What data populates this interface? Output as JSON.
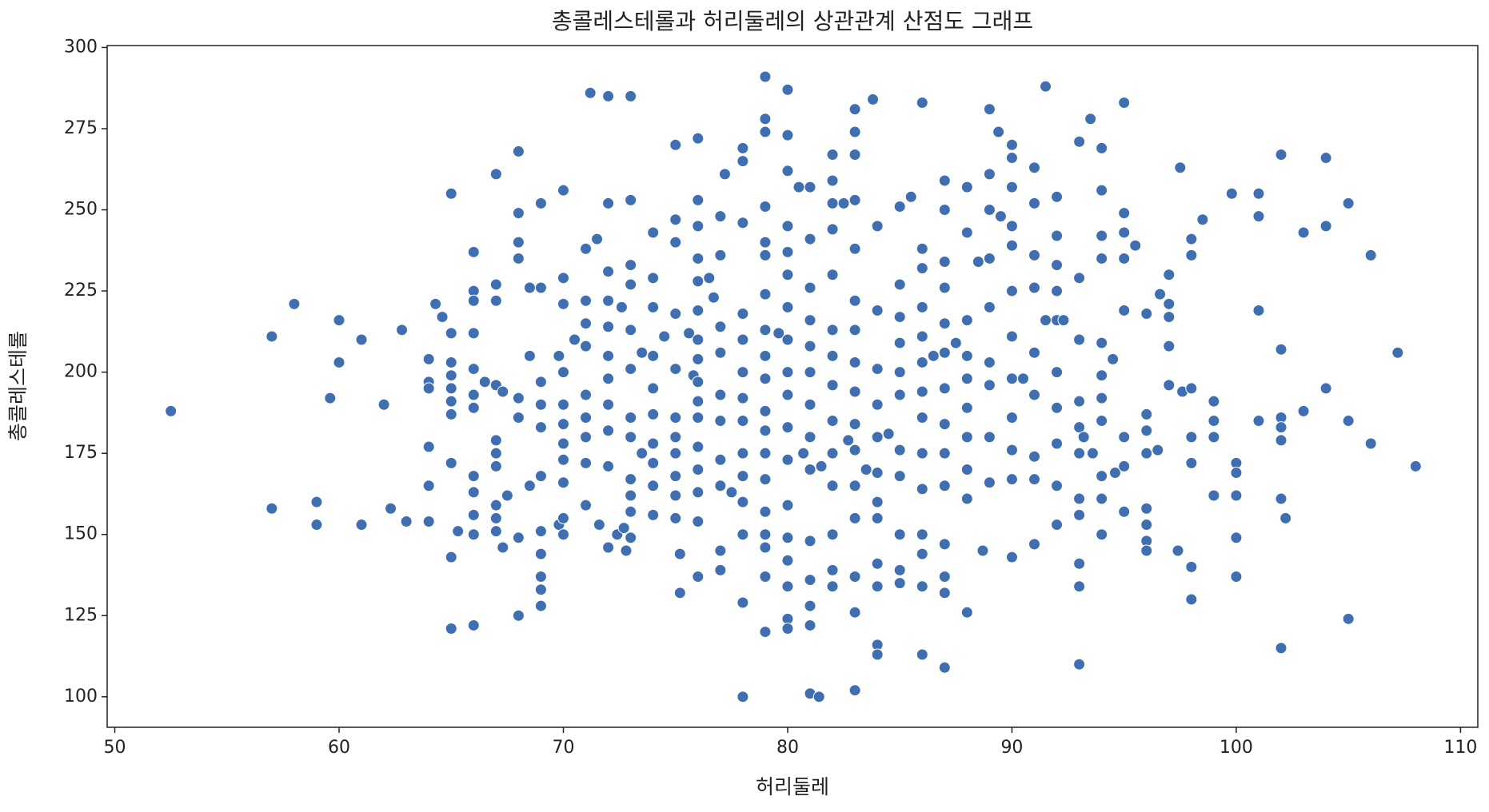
{
  "chart_data": {
    "type": "scatter",
    "title": "총콜레스테롤과 허리둘레의 상관관계 산점도 그래프",
    "x_label": "허리둘레",
    "y_label": "총콜레스테롤",
    "color": "#3f6fb0",
    "xlim": [
      49.66,
      110.77
    ],
    "ylim": [
      90.6,
      300.6
    ],
    "xticks": [
      50,
      60,
      70,
      80,
      90,
      100,
      110
    ],
    "yticks": [
      100,
      125,
      150,
      175,
      200,
      225,
      250,
      275,
      300
    ],
    "x": [
      52.5,
      57,
      57,
      58,
      59,
      59,
      59.6,
      60,
      60,
      61,
      61,
      62,
      62.3,
      62.8,
      63,
      64,
      64,
      64,
      64,
      64,
      64,
      64.3,
      64.6,
      65,
      65,
      65,
      65,
      65,
      65,
      65,
      65,
      65,
      65,
      65.3,
      66,
      66,
      66,
      66,
      66,
      66,
      66,
      66,
      66,
      66,
      66,
      66,
      66.5,
      67,
      67,
      67,
      67,
      67,
      67,
      67,
      67,
      67,
      67,
      67.3,
      67.5,
      67.3,
      68,
      68,
      68,
      68,
      68,
      68,
      68,
      68,
      68.5,
      68.5,
      68.5,
      69,
      69,
      69,
      69,
      69,
      69,
      69,
      69,
      69,
      69,
      69,
      69.8,
      69.8,
      70,
      70,
      70,
      70,
      70,
      70,
      70,
      70,
      70,
      70,
      70,
      70.5,
      71,
      71,
      71,
      71,
      71,
      71,
      71,
      71,
      71,
      71.2,
      71.5,
      71.6,
      72,
      72,
      72,
      72,
      72,
      72,
      72,
      72,
      72,
      72,
      72,
      72.4,
      72.6,
      72.7,
      72.8,
      73,
      73,
      73,
      73,
      73,
      73,
      73,
      73,
      73,
      73,
      73,
      73,
      73.5,
      73.5,
      74,
      74,
      74,
      74,
      74,
      74,
      74,
      74,
      74,
      74,
      74.5,
      75,
      75,
      75,
      75,
      75,
      75,
      75,
      75,
      75,
      75,
      75,
      75.2,
      75.2,
      75.6,
      75.8,
      76,
      76,
      76,
      76,
      76,
      76,
      76,
      76,
      76,
      76,
      76,
      76,
      76,
      76,
      76,
      76,
      76.5,
      76.7,
      77,
      77,
      77,
      77,
      77,
      77,
      77,
      77,
      77,
      77,
      77.2,
      77.5,
      78,
      78,
      78,
      78,
      78,
      78,
      78,
      78,
      78,
      78,
      78,
      78,
      78,
      78,
      79,
      79,
      79,
      79,
      79,
      79,
      79,
      79,
      79,
      79,
      79,
      79,
      79,
      79,
      79,
      79,
      79,
      79,
      79,
      79.6,
      80,
      80,
      80,
      80,
      80,
      80,
      80,
      80,
      80,
      80,
      80,
      80,
      80,
      80,
      80,
      80,
      80,
      80,
      80.5,
      80.7,
      81,
      81,
      81,
      81,
      81,
      81,
      81,
      81,
      81,
      81,
      81,
      81,
      81,
      81,
      81.4,
      81.5,
      82,
      82,
      82,
      82,
      82,
      82,
      82,
      82,
      82,
      82,
      82,
      82,
      82,
      82,
      82.5,
      82.7,
      83,
      83,
      83,
      83,
      83,
      83,
      83,
      83,
      83,
      83,
      83,
      83,
      83,
      83,
      83,
      83,
      83.5,
      83.8,
      84,
      84,
      84,
      84,
      84,
      84,
      84,
      84,
      84,
      84,
      84,
      84,
      84.5,
      85,
      85,
      85,
      85,
      85,
      85,
      85,
      85,
      85,
      85,
      85,
      85.5,
      86,
      86,
      86,
      86,
      86,
      86,
      86,
      86,
      86,
      86,
      86,
      86,
      86,
      86,
      86.5,
      87,
      87,
      87,
      87,
      87,
      87,
      87,
      87,
      87,
      87,
      87,
      87,
      87,
      87,
      87.5,
      88,
      88,
      88,
      88,
      88,
      88,
      88,
      88,
      88,
      88,
      88.5,
      88.7,
      89,
      89,
      89,
      89,
      89,
      89,
      89,
      89,
      89,
      89.4,
      89.5,
      90,
      90,
      90,
      90,
      90,
      90,
      90,
      90,
      90,
      90,
      90,
      90,
      90.5,
      91,
      91,
      91,
      91,
      91,
      91,
      91,
      91,
      91,
      91.5,
      91.5,
      92,
      92,
      92,
      92,
      92,
      92,
      92,
      92,
      92,
      92,
      92.3,
      93,
      93,
      93,
      93,
      93,
      93,
      93,
      93,
      93,
      93,
      93,
      93.2,
      93.5,
      93.6,
      94,
      94,
      94,
      94,
      94,
      94,
      94,
      94,
      94,
      94,
      94,
      94.5,
      94.6,
      95,
      95,
      95,
      95,
      95,
      95,
      95,
      95,
      95.5,
      96,
      96,
      96,
      96,
      96,
      96,
      96,
      96,
      96.5,
      96.6,
      97,
      97,
      97,
      97,
      97,
      97.4,
      97.5,
      97.6,
      98,
      98,
      98,
      98,
      98,
      98,
      98,
      98.5,
      99,
      99,
      99,
      99,
      99.8,
      100,
      100,
      100,
      100,
      100,
      101,
      101,
      101,
      101,
      102,
      102,
      102,
      102,
      102,
      102,
      102,
      102.2,
      103,
      103,
      104,
      104,
      104,
      105,
      105,
      105,
      106,
      106,
      107.2,
      108
    ],
    "values": [
      188,
      211,
      158,
      221,
      160,
      153,
      192,
      216,
      203,
      210,
      153,
      190,
      158,
      213,
      154,
      204,
      197,
      195,
      177,
      165,
      154,
      221,
      217,
      255,
      212,
      203,
      199,
      195,
      191,
      187,
      172,
      143,
      121,
      151,
      237,
      225,
      222,
      212,
      201,
      193,
      189,
      168,
      163,
      156,
      150,
      122,
      197,
      261,
      227,
      222,
      196,
      179,
      175,
      171,
      159,
      155,
      151,
      194,
      162,
      146,
      268,
      249,
      240,
      235,
      192,
      186,
      149,
      125,
      226,
      205,
      165,
      252,
      226,
      197,
      190,
      183,
      168,
      151,
      144,
      137,
      133,
      128,
      205,
      153,
      256,
      229,
      221,
      200,
      190,
      184,
      178,
      173,
      166,
      155,
      150,
      210,
      238,
      222,
      215,
      208,
      193,
      186,
      180,
      172,
      159,
      286,
      241,
      153,
      285,
      252,
      231,
      222,
      214,
      205,
      198,
      190,
      182,
      171,
      146,
      150,
      220,
      152,
      145,
      285,
      253,
      233,
      227,
      213,
      201,
      186,
      180,
      167,
      162,
      157,
      149,
      206,
      175,
      243,
      229,
      220,
      205,
      195,
      187,
      178,
      172,
      165,
      156,
      211,
      270,
      247,
      240,
      218,
      201,
      186,
      180,
      175,
      168,
      162,
      155,
      144,
      132,
      212,
      199,
      272,
      253,
      245,
      235,
      228,
      219,
      210,
      204,
      197,
      191,
      186,
      177,
      170,
      163,
      154,
      137,
      229,
      223,
      248,
      236,
      214,
      206,
      193,
      185,
      173,
      165,
      145,
      139,
      261,
      163,
      269,
      265,
      246,
      218,
      210,
      200,
      192,
      185,
      175,
      168,
      160,
      150,
      129,
      100,
      291,
      278,
      274,
      251,
      240,
      236,
      224,
      213,
      205,
      198,
      188,
      182,
      175,
      167,
      157,
      150,
      146,
      137,
      120,
      212,
      287,
      273,
      262,
      245,
      237,
      230,
      220,
      210,
      200,
      193,
      183,
      173,
      159,
      149,
      142,
      134,
      124,
      121,
      257,
      175,
      257,
      241,
      226,
      216,
      208,
      200,
      190,
      180,
      170,
      148,
      136,
      128,
      122,
      101,
      100,
      171,
      267,
      259,
      252,
      244,
      230,
      213,
      205,
      196,
      185,
      175,
      165,
      150,
      139,
      134,
      252,
      179,
      281,
      274,
      267,
      253,
      238,
      222,
      213,
      203,
      194,
      184,
      176,
      165,
      155,
      137,
      126,
      102,
      170,
      284,
      245,
      219,
      201,
      190,
      180,
      169,
      160,
      155,
      141,
      134,
      116,
      113,
      181,
      251,
      227,
      217,
      209,
      200,
      193,
      176,
      168,
      150,
      139,
      135,
      254,
      283,
      238,
      232,
      220,
      211,
      203,
      194,
      186,
      175,
      164,
      150,
      144,
      134,
      113,
      205,
      259,
      250,
      234,
      226,
      215,
      206,
      195,
      184,
      175,
      165,
      147,
      137,
      132,
      109,
      209,
      257,
      243,
      216,
      205,
      198,
      189,
      180,
      170,
      161,
      126,
      234,
      145,
      281,
      261,
      250,
      235,
      220,
      203,
      196,
      180,
      166,
      274,
      248,
      270,
      266,
      257,
      245,
      239,
      225,
      211,
      198,
      186,
      176,
      167,
      143,
      198,
      263,
      252,
      236,
      226,
      206,
      193,
      174,
      167,
      147,
      288,
      216,
      254,
      242,
      233,
      225,
      216,
      200,
      189,
      178,
      165,
      153,
      216,
      271,
      229,
      210,
      191,
      183,
      175,
      161,
      156,
      141,
      134,
      110,
      180,
      278,
      175,
      269,
      256,
      242,
      235,
      209,
      199,
      192,
      185,
      168,
      161,
      150,
      204,
      169,
      283,
      249,
      243,
      235,
      219,
      180,
      171,
      157,
      239,
      218,
      187,
      182,
      175,
      158,
      153,
      148,
      145,
      176,
      224,
      230,
      221,
      217,
      208,
      196,
      145,
      263,
      194,
      241,
      236,
      195,
      180,
      172,
      140,
      130,
      247,
      191,
      185,
      180,
      162,
      255,
      172,
      169,
      162,
      149,
      137,
      255,
      248,
      219,
      185,
      267,
      207,
      186,
      183,
      179,
      161,
      115,
      155,
      188,
      243,
      266,
      245,
      195,
      252,
      185,
      124,
      236,
      178,
      206,
      171
    ]
  }
}
